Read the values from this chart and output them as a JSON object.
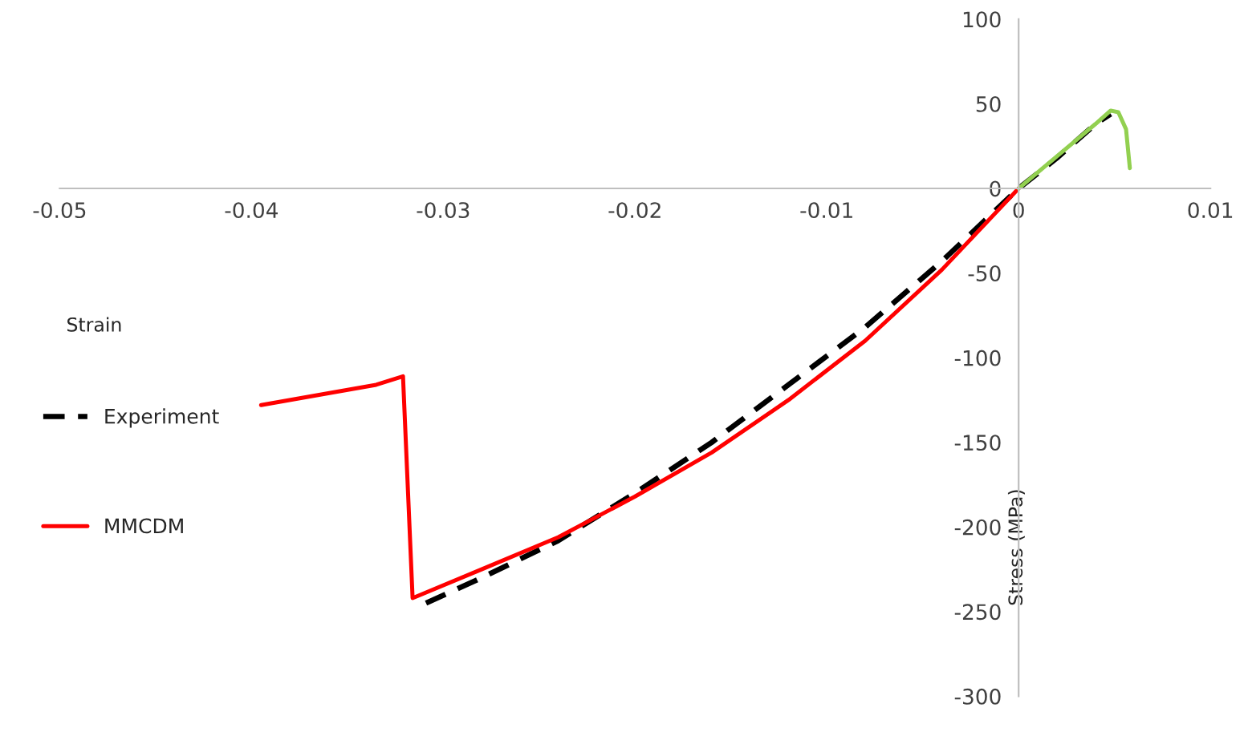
{
  "chart_data": {
    "type": "line",
    "xlabel": "Strain",
    "ylabel": "Stress (MPa)",
    "xlim": [
      -0.05,
      0.01
    ],
    "xticks": [
      -0.05,
      -0.04,
      -0.03,
      -0.02,
      -0.01,
      0,
      0.01
    ],
    "ylim": [
      -300,
      100
    ],
    "yticks": [
      -300,
      -250,
      -200,
      -150,
      -100,
      -50,
      0,
      50,
      100
    ],
    "grid": false,
    "legend": "left",
    "line_style": "solid",
    "marker": "none",
    "series": [
      {
        "name": "Experiment",
        "color": "#000000",
        "line_style": "dashed",
        "x": [
          -0.0309,
          -0.028,
          -0.024,
          -0.02,
          -0.016,
          -0.012,
          -0.008,
          -0.004,
          0,
          0.002,
          0.004,
          0.0048
        ],
        "values": [
          -245,
          -230,
          -208,
          -180,
          -150,
          -116,
          -82,
          -43,
          0,
          18,
          38,
          44
        ]
      },
      {
        "name": "MMCDM",
        "color": "#ff0000",
        "x": [
          -0.0395,
          -0.036,
          -0.0335,
          -0.0321,
          -0.0316,
          -0.028,
          -0.024,
          -0.02,
          -0.016,
          -0.012,
          -0.008,
          -0.004,
          0
        ],
        "values": [
          -128,
          -121,
          -116,
          -111,
          -242,
          -225,
          -206,
          -182,
          -156,
          -125,
          -90,
          -48,
          0
        ]
      },
      {
        "color": "#92d050",
        "x": [
          0,
          0.002,
          0.004,
          0.0048,
          0.0052,
          0.0056,
          0.0058
        ],
        "values": [
          0,
          19,
          38,
          46,
          45,
          35,
          12
        ]
      }
    ]
  }
}
